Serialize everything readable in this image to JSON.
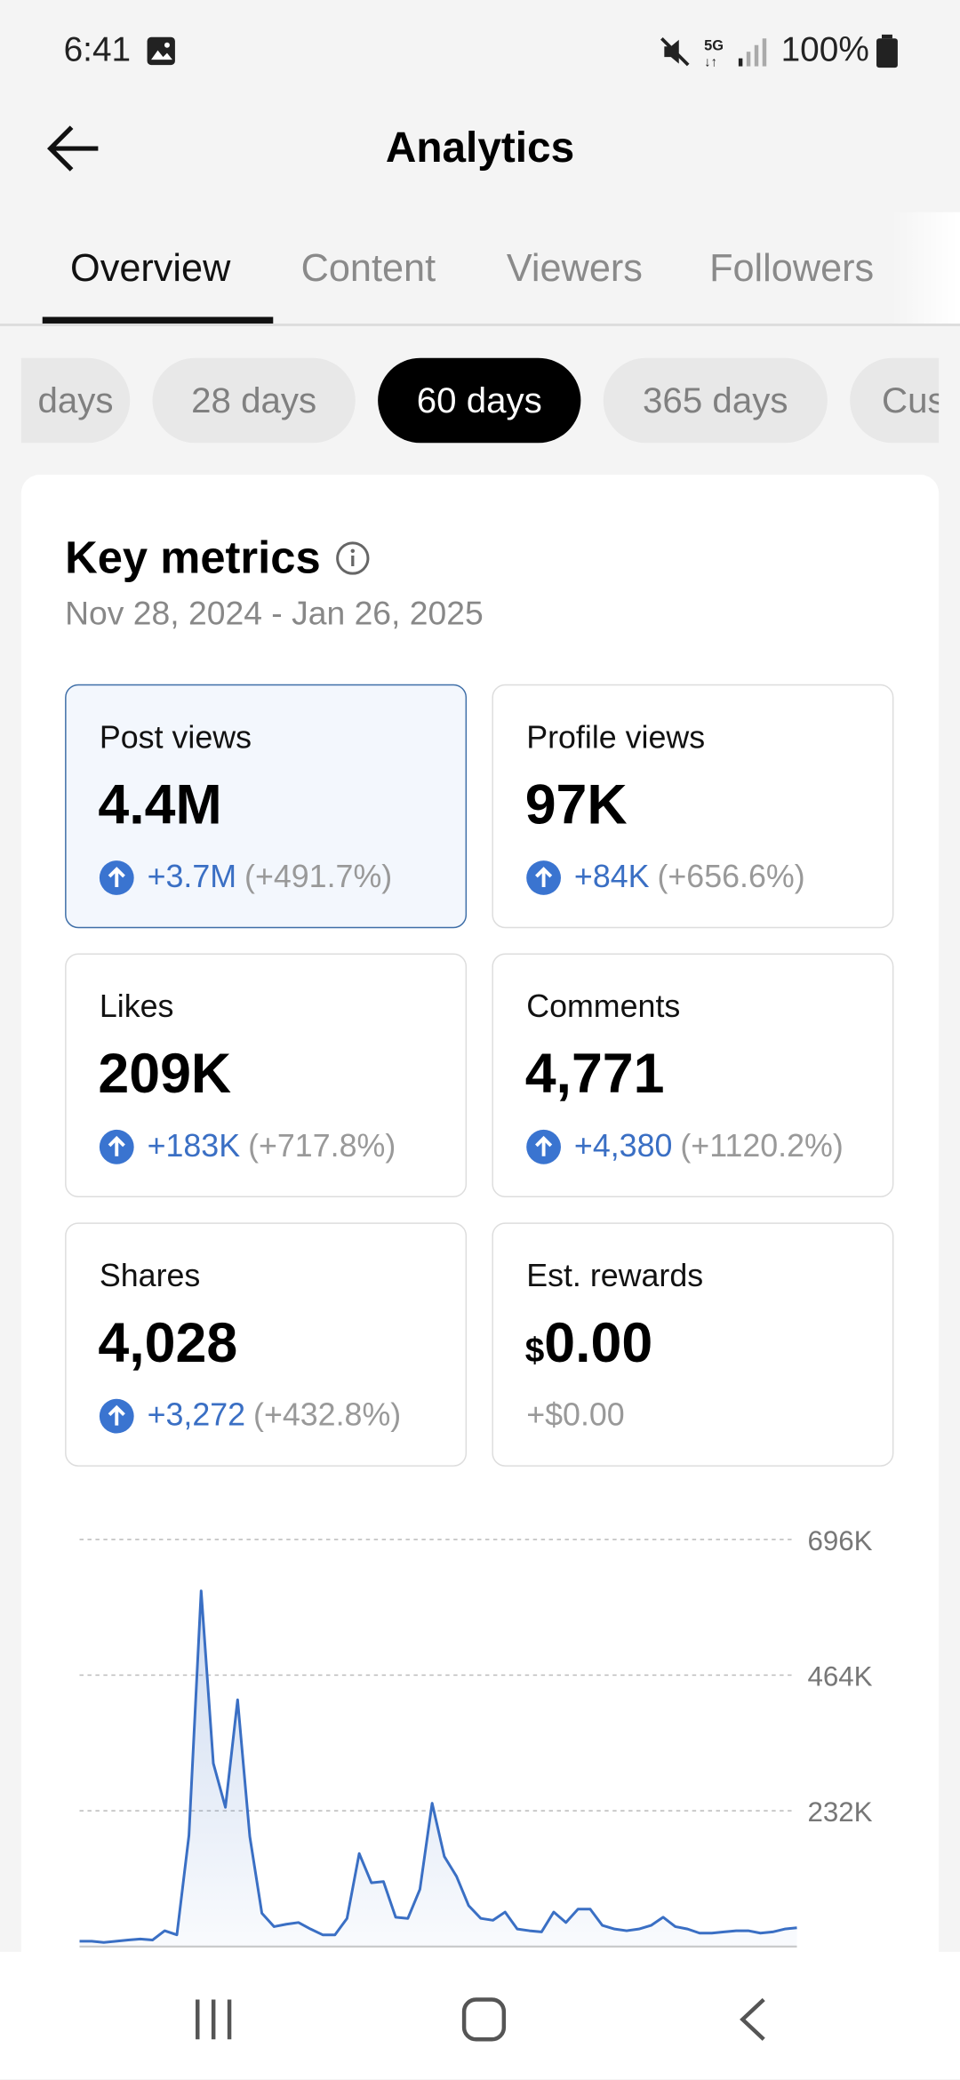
{
  "status_bar": {
    "time": "6:41",
    "battery": "100%"
  },
  "header": {
    "title": "Analytics"
  },
  "tabs": [
    "Overview",
    "Content",
    "Viewers",
    "Followers"
  ],
  "ranges": [
    "days",
    "28 days",
    "60 days",
    "365 days",
    "Cus"
  ],
  "key_metrics": {
    "title": "Key metrics",
    "date_range": "Nov 28, 2024 - Jan 26, 2025",
    "items": [
      {
        "label": "Post views",
        "value": "4.4M",
        "change": "+3.7M",
        "percent": "(+491.7%)"
      },
      {
        "label": "Profile views",
        "value": "97K",
        "change": "+84K",
        "percent": "(+656.6%)"
      },
      {
        "label": "Likes",
        "value": "209K",
        "change": "+183K",
        "percent": "(+717.8%)"
      },
      {
        "label": "Comments",
        "value": "4,771",
        "change": "+4,380",
        "percent": "(+1120.2%)"
      },
      {
        "label": "Shares",
        "value": "4,028",
        "change": "+3,272",
        "percent": "(+432.8%)"
      },
      {
        "label": "Est. rewards",
        "currency": "$",
        "value": "0.00",
        "change": "+$0.00"
      }
    ]
  },
  "chart_data": {
    "type": "line",
    "color": "#3a6fc4",
    "values": [
      9000,
      9000,
      7000,
      9000,
      11000,
      13000,
      11000,
      27000,
      20000,
      190000,
      608000,
      313000,
      238000,
      422000,
      188000,
      57000,
      34000,
      38000,
      41000,
      30000,
      20000,
      20000,
      48000,
      159000,
      109000,
      111000,
      50000,
      48000,
      98000,
      245000,
      154000,
      120000,
      70000,
      48000,
      45000,
      59000,
      30000,
      27000,
      25000,
      59000,
      41000,
      64000,
      64000,
      36000,
      30000,
      27000,
      30000,
      36000,
      50000,
      34000,
      30000,
      23000,
      23000,
      25000,
      27000,
      27000,
      23000,
      25000,
      30000,
      32000
    ],
    "ylim": [
      0,
      696000
    ],
    "yticks": [
      {
        "value": 232000,
        "label": "232K"
      },
      {
        "value": 464000,
        "label": "464K"
      },
      {
        "value": 696000,
        "label": "696K"
      }
    ],
    "grid": true
  }
}
